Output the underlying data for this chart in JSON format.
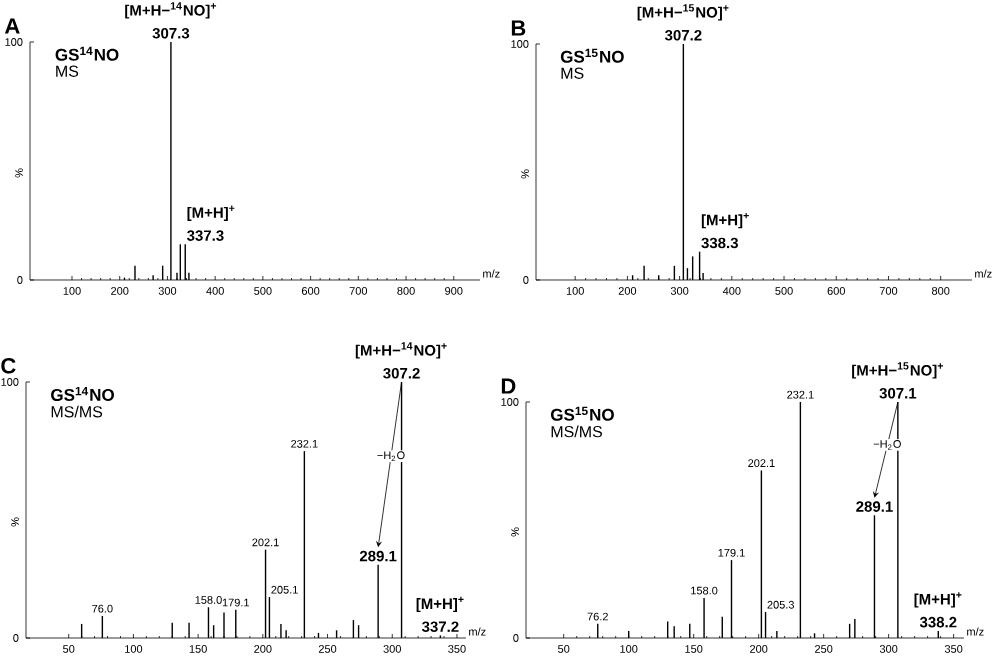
{
  "chart_data": [
    {
      "type": "bar",
      "title": "A",
      "subtitle": "GS$^{14}$NO",
      "xlabel": "m/z",
      "ylabel": "%",
      "color": "#000000",
      "x": [
        210,
        232,
        270,
        290,
        307.3,
        320,
        327,
        337.3,
        345
      ],
      "values": [
        1,
        6,
        2,
        6,
        100,
        3,
        15,
        15,
        3
      ],
      "xlim": [
        12,
        955
      ],
      "ylim": [
        0,
        100
      ],
      "xticks": [
        100,
        200,
        300,
        400,
        500,
        600,
        700,
        800,
        900
      ],
      "yticks": [
        0,
        100
      ],
      "annotations": [
        "MS",
        {
          "text": "[M+H−$^{14}$NO]$^{+}$",
          "x": 307.3,
          "y": 100
        },
        {
          "text": "307.3",
          "x": 307.3,
          "y": 100
        },
        {
          "text": "[M+H]$^{+}$",
          "x": 337.3,
          "y": 15
        },
        {
          "text": "337.3",
          "x": 337.3,
          "y": 15
        }
      ]
    },
    {
      "type": "bar",
      "title": "B",
      "subtitle": "GS$^{15}$NO",
      "xlabel": "m/z",
      "ylabel": "%",
      "color": "#000000",
      "x": [
        210,
        232,
        260,
        290,
        307.2,
        315,
        325,
        338.3,
        345
      ],
      "values": [
        2,
        6,
        2,
        6,
        100,
        5,
        10,
        12,
        3
      ],
      "xlim": [
        25,
        860
      ],
      "ylim": [
        0,
        100
      ],
      "xticks": [
        100,
        200,
        300,
        400,
        500,
        600,
        700,
        800
      ],
      "yticks": [
        0,
        100
      ],
      "annotations": [
        "MS",
        {
          "text": "[M+H−$^{15}$NO]$^{+}$",
          "x": 307.2,
          "y": 100
        },
        {
          "text": "307.2",
          "x": 307.2,
          "y": 100
        },
        {
          "text": "[M+H]$^{+}$",
          "x": 338.3,
          "y": 12
        },
        {
          "text": "338.3",
          "x": 338.3,
          "y": 12
        }
      ]
    },
    {
      "type": "bar",
      "title": "C",
      "subtitle": "GS$^{14}$NO",
      "xlabel": "m/z",
      "ylabel": "%",
      "color": "#000000",
      "x": [
        60,
        76,
        130,
        143,
        158,
        162,
        170,
        179.1,
        202.1,
        205.1,
        214,
        218,
        232.1,
        243,
        257,
        270,
        274,
        289.1,
        307.2,
        337.2
      ],
      "values": [
        5.5,
        8.6,
        6,
        6,
        12,
        5,
        10,
        11,
        34.5,
        16,
        5.5,
        3,
        73,
        2,
        3,
        7,
        5,
        28.6,
        100,
        1
      ],
      "xlim": [
        17,
        357
      ],
      "ylim": [
        0,
        100
      ],
      "xticks": [
        50,
        100,
        150,
        200,
        250,
        300,
        350
      ],
      "yticks": [
        0,
        100
      ],
      "annotations": [
        "MS/MS",
        {
          "text": "76.0",
          "x": 76,
          "y": 8.6
        },
        {
          "text": "158.0",
          "x": 158,
          "y": 12
        },
        {
          "text": "179.1",
          "x": 179.1,
          "y": 11
        },
        {
          "text": "202.1",
          "x": 202.1,
          "y": 34.5
        },
        {
          "text": "205.1",
          "x": 205.1,
          "y": 16
        },
        {
          "text": "232.1",
          "x": 232.1,
          "y": 73
        },
        {
          "text": "[M+H−$^{14}$NO]$^{+}$",
          "x": 307.2,
          "y": 100
        },
        {
          "text": "307.2",
          "x": 307.2,
          "y": 100
        },
        "−H$_{2}$O",
        {
          "text": "289.1",
          "x": 289.1,
          "y": 28.6
        },
        {
          "text": "[M+H]$^{+}$",
          "x": 337.2,
          "y": 1
        },
        {
          "text": "337.2",
          "x": 337.2,
          "y": 1
        }
      ]
    },
    {
      "type": "bar",
      "title": "D",
      "subtitle": "GS$^{15}$NO",
      "xlabel": "m/z",
      "ylabel": "%",
      "color": "#000000",
      "x": [
        76.2,
        100,
        130,
        135,
        147,
        158,
        172,
        179.1,
        202.1,
        205.3,
        214,
        232.1,
        243,
        270,
        274,
        289.1,
        307.1,
        338.2
      ],
      "values": [
        6,
        3,
        7,
        5,
        6,
        17,
        9,
        33,
        71,
        11,
        3,
        100,
        2,
        6,
        8,
        52,
        100,
        3
      ],
      "xlim": [
        21,
        358
      ],
      "ylim": [
        0,
        100
      ],
      "xticks": [
        50,
        100,
        150,
        200,
        250,
        300,
        350
      ],
      "yticks": [
        0,
        100
      ],
      "annotations": [
        "MS/MS",
        {
          "text": "76.2",
          "x": 76.2,
          "y": 6
        },
        {
          "text": "158.0",
          "x": 158,
          "y": 17
        },
        {
          "text": "179.1",
          "x": 179.1,
          "y": 33
        },
        {
          "text": "202.1",
          "x": 202.1,
          "y": 71
        },
        {
          "text": "205.3",
          "x": 205.3,
          "y": 11
        },
        {
          "text": "232.1",
          "x": 232.1,
          "y": 100
        },
        {
          "text": "[M+H−$^{15}$NO]$^{+}$",
          "x": 307.1,
          "y": 100
        },
        {
          "text": "307.1",
          "x": 307.1,
          "y": 100
        },
        "−H$_{2}$O",
        {
          "text": "289.1",
          "x": 289.1,
          "y": 52
        },
        {
          "text": "[M+H]$^{+}$",
          "x": 338.2,
          "y": 3
        },
        {
          "text": "338.2",
          "x": 338.2,
          "y": 3
        }
      ]
    }
  ]
}
